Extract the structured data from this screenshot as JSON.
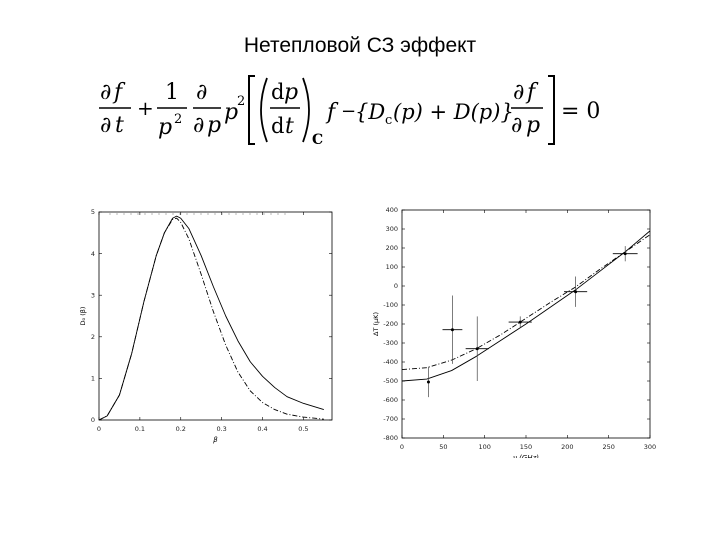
{
  "slide": {
    "title": "Нетепловой СЗ эффект"
  },
  "equation": {
    "partial": "∂",
    "f": "f",
    "t": "t",
    "one": "1",
    "p": "p",
    "sq": "2",
    "d": "d",
    "sub_c": "C",
    "minus": "−",
    "bracket_text": "{D",
    "sub_c_small": "c",
    "mid": "(p) + D(p)}",
    "equals": "= 0"
  },
  "chart_data": [
    {
      "type": "line",
      "xlabel": "β",
      "ylabel": "D₀ (β)",
      "xlim": [
        0,
        0.57
      ],
      "ylim": [
        0,
        5
      ],
      "xticks": [
        "0",
        "0.1",
        "0.2",
        "0.3",
        "0.4",
        "0.5"
      ],
      "yticks": [
        "0",
        "1",
        "2",
        "3",
        "4",
        "5"
      ],
      "grid": false,
      "series": [
        {
          "style": "solid",
          "x": [
            0,
            0.02,
            0.05,
            0.08,
            0.11,
            0.14,
            0.16,
            0.18,
            0.19,
            0.2,
            0.22,
            0.25,
            0.28,
            0.31,
            0.34,
            0.37,
            0.4,
            0.43,
            0.46,
            0.5,
            0.55
          ],
          "y": [
            0,
            0.1,
            0.6,
            1.6,
            2.85,
            3.95,
            4.5,
            4.85,
            4.9,
            4.85,
            4.6,
            3.95,
            3.2,
            2.5,
            1.9,
            1.4,
            1.05,
            0.78,
            0.56,
            0.4,
            0.25
          ]
        },
        {
          "style": "dashed",
          "x": [
            0,
            0.02,
            0.05,
            0.08,
            0.11,
            0.14,
            0.16,
            0.18,
            0.19,
            0.2,
            0.22,
            0.25,
            0.28,
            0.31,
            0.34,
            0.37,
            0.4,
            0.43,
            0.46,
            0.5,
            0.55
          ],
          "y": [
            0,
            0.1,
            0.6,
            1.6,
            2.85,
            3.95,
            4.5,
            4.82,
            4.85,
            4.75,
            4.35,
            3.5,
            2.6,
            1.8,
            1.15,
            0.7,
            0.42,
            0.25,
            0.14,
            0.07,
            0.02
          ]
        }
      ]
    },
    {
      "type": "line",
      "xlabel": "ν (GHz)",
      "ylabel": "ΔT (μK)",
      "xlim": [
        0,
        300
      ],
      "ylim": [
        -800,
        400
      ],
      "xticks": [
        "0",
        "50",
        "100",
        "150",
        "200",
        "250",
        "300"
      ],
      "yticks": [
        "400",
        "300",
        "200",
        "100",
        "0",
        "-100",
        "-200",
        "-300",
        "-400",
        "-500",
        "-600",
        "-700",
        "-800"
      ],
      "series": [
        {
          "style": "solid",
          "x": [
            0,
            30,
            60,
            90,
            120,
            150,
            180,
            210,
            240,
            270,
            300
          ],
          "y": [
            -500,
            -490,
            -445,
            -370,
            -285,
            -200,
            -110,
            -20,
            80,
            180,
            290
          ]
        },
        {
          "style": "dashed",
          "x": [
            0,
            30,
            60,
            90,
            120,
            150,
            180,
            210,
            240,
            270,
            300
          ],
          "y": [
            -440,
            -430,
            -390,
            -330,
            -255,
            -170,
            -85,
            -5,
            90,
            180,
            270
          ]
        }
      ],
      "points": [
        {
          "x": 32,
          "y": -505,
          "xerr": 0,
          "yerr": 80
        },
        {
          "x": 61,
          "y": -230,
          "xerr": 12,
          "yerr": 180
        },
        {
          "x": 91,
          "y": -330,
          "xerr": 14,
          "yerr": 170
        },
        {
          "x": 143,
          "y": -190,
          "xerr": 14,
          "yerr": 30
        },
        {
          "x": 210,
          "y": -30,
          "xerr": 14,
          "yerr": 80
        },
        {
          "x": 270,
          "y": 170,
          "xerr": 15,
          "yerr": 40
        }
      ]
    }
  ]
}
